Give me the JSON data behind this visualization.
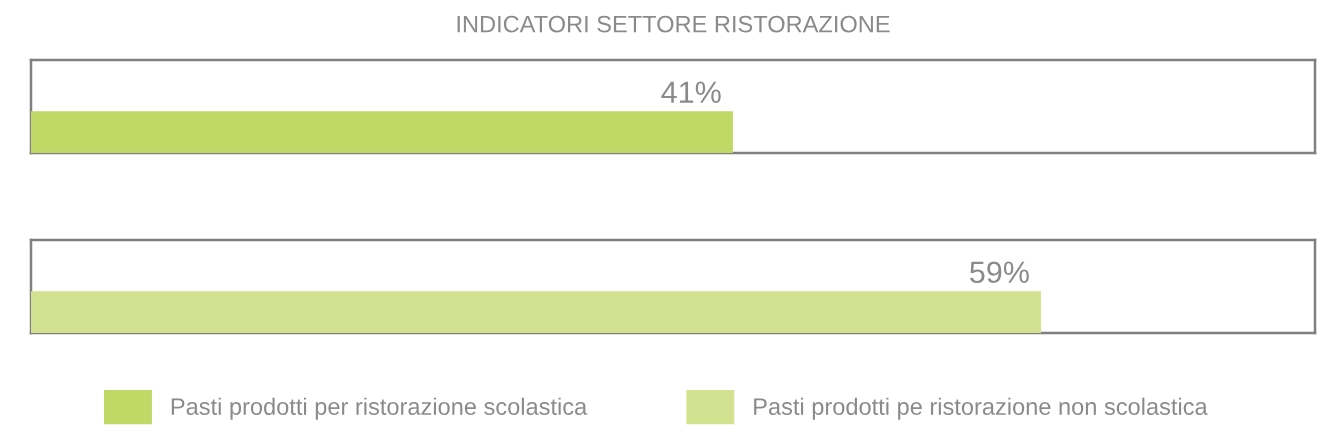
{
  "chart_data": {
    "type": "bar",
    "orientation": "horizontal",
    "stacked": true,
    "title": "INDICATORI SETTORE RISTORAZIONE",
    "categories": [
      null,
      null
    ],
    "series": [
      {
        "name": "Pasti prodotti per ristorazione scolastica",
        "color": "#bed966",
        "values": [
          41,
          null
        ],
        "value_labels": [
          "41%",
          null
        ]
      },
      {
        "name": "Pasti prodotti pe ristorazione non scolastica",
        "color": "#d3e290",
        "values": [
          null,
          59
        ],
        "value_labels": [
          null,
          "59%"
        ]
      }
    ],
    "xlim": [
      0,
      75
    ],
    "tick_labels": false,
    "legend": "bottom"
  }
}
